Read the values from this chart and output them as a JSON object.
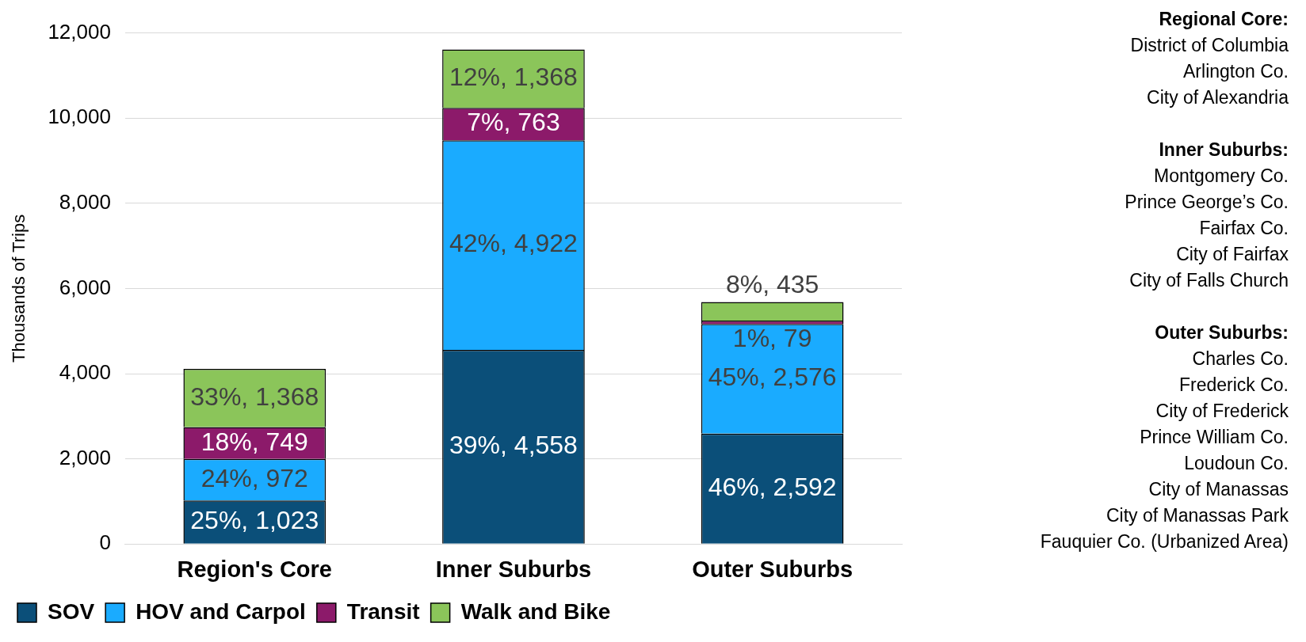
{
  "chart_data": {
    "type": "bar",
    "stacked": true,
    "ylabel": "Thousands of Trips",
    "categories": [
      "Region's Core",
      "Inner Suburbs",
      "Outer Suburbs"
    ],
    "series": [
      {
        "name": "SOV",
        "color": "#0b4f79",
        "values": [
          1023,
          4558,
          2592
        ],
        "value_labels": [
          "25%, 1,023",
          "39%, 4,558",
          "46%, 2,592"
        ]
      },
      {
        "name": "HOV and Carpol",
        "color": "#1aabff",
        "values": [
          972,
          4922,
          2576
        ],
        "value_labels": [
          "24%, 972",
          "42%, 4,922",
          "45%, 2,576"
        ]
      },
      {
        "name": "Transit",
        "color": "#8c1a6a",
        "values": [
          749,
          763,
          79
        ],
        "value_labels": [
          "18%, 749",
          "7%, 763",
          "1%, 79"
        ]
      },
      {
        "name": "Walk and Bike",
        "color": "#8bc55a",
        "values": [
          1368,
          1368,
          435
        ],
        "value_labels": [
          "33%, 1,368",
          "12%, 1,368",
          "8%, 435"
        ]
      }
    ],
    "ylim": [
      0,
      12000
    ],
    "yticks": [
      {
        "value": 0,
        "label": "0"
      },
      {
        "value": 2000,
        "label": "2,000"
      },
      {
        "value": 4000,
        "label": "4,000"
      },
      {
        "value": 6000,
        "label": "6,000"
      },
      {
        "value": 8000,
        "label": "8,000"
      },
      {
        "value": 10000,
        "label": "10,000"
      },
      {
        "value": 12000,
        "label": "12,000"
      }
    ],
    "grid": "y",
    "legend": "bottom left",
    "annotations": [
      "Regional Core:\nDistrict of Columbia\nArlington Co.\nCity of Alexandria",
      "Inner Suburbs:\nMontgomery Co.\nPrince George’s Co.\nFairfax Co.\nCity of Fairfax\nCity of Falls Church",
      "Outer Suburbs:\nCharles Co.\nFrederick Co.\nCity of Frederick\nPrince William Co.\nLoudoun Co.\nCity of Manassas\nCity of Manassas Park\nFauquier Co. (Urbanized Area)"
    ]
  }
}
